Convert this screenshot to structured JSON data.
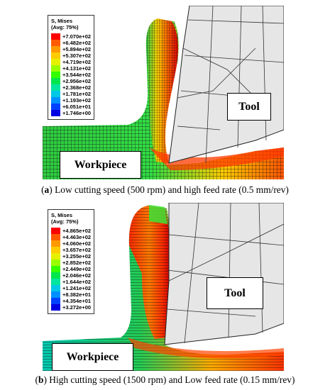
{
  "panel_a": {
    "legend": {
      "title": "S, Mises",
      "subtitle": "(Avg: 75%)",
      "entries": [
        {
          "value": "+7.070e+02",
          "color": "#ff0000"
        },
        {
          "value": "+6.482e+02",
          "color": "#ff5a00"
        },
        {
          "value": "+5.894e+02",
          "color": "#ff9900"
        },
        {
          "value": "+5.307e+02",
          "color": "#ffcc00"
        },
        {
          "value": "+4.719e+02",
          "color": "#e6f000"
        },
        {
          "value": "+4.131e+02",
          "color": "#99ff00"
        },
        {
          "value": "+3.544e+02",
          "color": "#33ff00"
        },
        {
          "value": "+2.956e+02",
          "color": "#00e64d"
        },
        {
          "value": "+2.368e+02",
          "color": "#00e6a0"
        },
        {
          "value": "+1.781e+02",
          "color": "#00c8e6"
        },
        {
          "value": "+1.193e+02",
          "color": "#0090ff"
        },
        {
          "value": "+6.051e+01",
          "color": "#0040ff"
        },
        {
          "value": "+1.746e+00",
          "color": "#0000e0"
        }
      ]
    },
    "tool_label": "Tool",
    "workpiece_label": "Workpiece",
    "caption_letter": "a",
    "caption_text": " Low cutting speed (500 rpm) and high feed rate (0.5 mm/rev)"
  },
  "panel_b": {
    "legend": {
      "title": "S, Mises",
      "subtitle": "(Avg: 75%)",
      "entries": [
        {
          "value": "+4.865e+02",
          "color": "#ff0000"
        },
        {
          "value": "+4.463e+02",
          "color": "#ff5a00"
        },
        {
          "value": "+4.060e+02",
          "color": "#ff9900"
        },
        {
          "value": "+3.657e+02",
          "color": "#ffcc00"
        },
        {
          "value": "+3.255e+02",
          "color": "#e6f000"
        },
        {
          "value": "+2.852e+02",
          "color": "#99ff00"
        },
        {
          "value": "+2.449e+02",
          "color": "#33ff00"
        },
        {
          "value": "+2.046e+02",
          "color": "#00e64d"
        },
        {
          "value": "+1.644e+02",
          "color": "#00e6a0"
        },
        {
          "value": "+1.241e+02",
          "color": "#00c8e6"
        },
        {
          "value": "+8.382e+01",
          "color": "#0090ff"
        },
        {
          "value": "+4.354e+01",
          "color": "#0040ff"
        },
        {
          "value": "+3.272e+00",
          "color": "#0000e0"
        }
      ]
    },
    "tool_label": "Tool",
    "workpiece_label": "Workpiece",
    "caption_letter": "b",
    "caption_text": " High cutting speed (1500 rpm) and Low feed rate (0.15 mm/rev)"
  }
}
